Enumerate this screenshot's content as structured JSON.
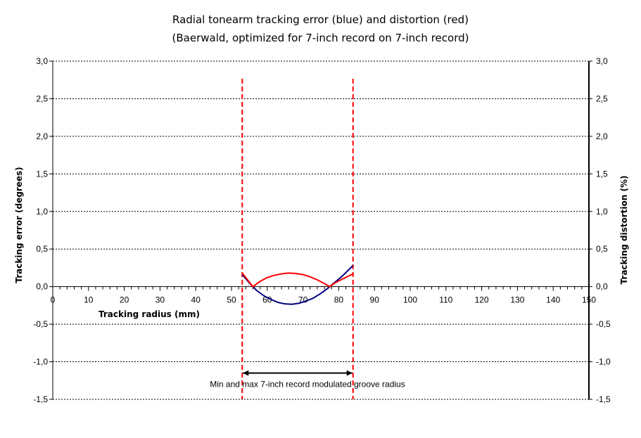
{
  "chart_data": {
    "type": "line",
    "title": "Radial tonearm tracking error (blue) and distortion (red)",
    "subtitle": "(Baerwald, optimized for 7-inch record on 7-inch record)",
    "xlabel": "Tracking radius (mm)",
    "ylabel_left": "Tracking error (degrees)",
    "ylabel_right": "Tracking distortion (%)",
    "xlim": [
      0,
      150
    ],
    "ylim": [
      -1.5,
      3.0
    ],
    "x_ticks": [
      0,
      10,
      20,
      30,
      40,
      50,
      60,
      70,
      80,
      90,
      100,
      110,
      120,
      130,
      140,
      150
    ],
    "x_tick_labels": [
      "0",
      "10",
      "20",
      "30",
      "40",
      "50",
      "60",
      "70",
      "80",
      "90",
      "100",
      "110",
      "120",
      "130",
      "140",
      "150"
    ],
    "y_ticks": [
      3.0,
      2.5,
      2.0,
      1.5,
      1.0,
      0.5,
      0.0,
      -0.5,
      -1.0,
      -1.5
    ],
    "y_tick_labels": [
      "3,0",
      "2,5",
      "2,0",
      "1,5",
      "1,0",
      "0,5",
      "0,0",
      "-0,5",
      "-1,0",
      "-1,5"
    ],
    "grid": "horizontal dashed",
    "series": [
      {
        "color": "#000080",
        "x": [
          53,
          55,
          57,
          59,
          61,
          63,
          65,
          67,
          69,
          71,
          73,
          75,
          77,
          79,
          81,
          84
        ],
        "y": [
          0.16,
          0.05,
          -0.05,
          -0.12,
          -0.17,
          -0.21,
          -0.23,
          -0.235,
          -0.22,
          -0.19,
          -0.15,
          -0.09,
          -0.02,
          0.06,
          0.14,
          0.28
        ]
      },
      {
        "color": "#ff0000",
        "x": [
          53,
          55,
          56,
          58,
          60,
          62,
          64,
          66,
          68,
          70,
          72,
          74,
          76,
          77.5,
          79,
          81,
          84
        ],
        "y": [
          0.18,
          0.06,
          0.0,
          0.07,
          0.12,
          0.15,
          0.17,
          0.18,
          0.175,
          0.16,
          0.13,
          0.09,
          0.04,
          0.0,
          0.05,
          0.1,
          0.17
        ]
      }
    ],
    "vertical_markers": {
      "x": [
        53,
        84
      ],
      "color": "#ff0000"
    },
    "annotation": {
      "text": "Min and max 7-inch record modulated groove radius",
      "x_from": 53,
      "x_to": 84,
      "y": -1.15
    }
  }
}
